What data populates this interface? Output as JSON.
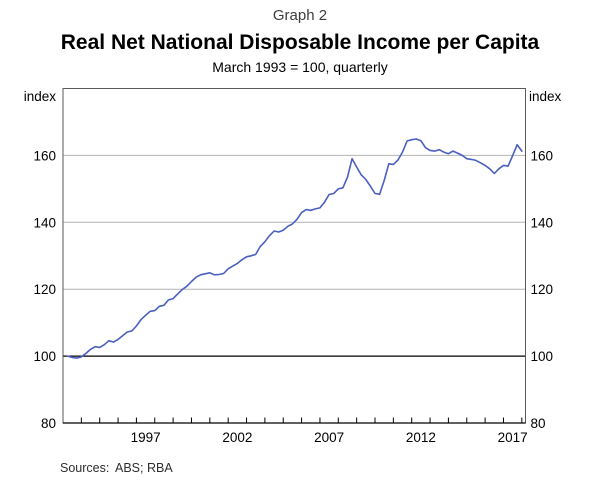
{
  "header": {
    "graph_number": "Graph 2",
    "title": "Real Net National Disposable Income per Capita",
    "subtitle": "March 1993 = 100, quarterly"
  },
  "footer": {
    "sources_label": "Sources:",
    "sources_text": "ABS; RBA"
  },
  "colors": {
    "line": "#4a5fc1",
    "grid": "#b3b3b3",
    "frame": "#595959",
    "axis": "#000000",
    "reference": "#000000"
  },
  "chart_data": {
    "type": "line",
    "title": "Real Net National Disposable Income per Capita",
    "subtitle": "March 1993 = 100, quarterly",
    "grid": true,
    "legend": "none",
    "y_axis": {
      "unit_label": "index",
      "range": [
        80,
        180
      ],
      "tick_values": [
        80,
        100,
        120,
        140,
        160
      ],
      "reference_line": 100,
      "labels_both_sides": true
    },
    "x_axis": {
      "domain_years": [
        1993.0,
        2018.2
      ],
      "tick_year_first": 1994,
      "tick_year_last": 2018,
      "year_labels": [
        1997,
        2002,
        2007,
        2012,
        2017
      ],
      "start_t": 1993.25,
      "step_t": 0.25
    },
    "series": [
      {
        "id": "rnndi-per-capita",
        "name": "Real net national disposable income per capita",
        "color": "#4a5fc1",
        "frequency": "quarterly",
        "first_observation": "Mar 1993",
        "last_observation": "Dec 2017",
        "values": [
          100.0,
          99.6,
          99.4,
          99.8,
          100.8,
          102.0,
          102.8,
          102.6,
          103.4,
          104.6,
          104.2,
          105.0,
          106.1,
          107.2,
          107.5,
          109.0,
          110.9,
          112.2,
          113.4,
          113.6,
          114.9,
          115.2,
          116.8,
          117.2,
          118.6,
          119.9,
          120.9,
          122.3,
          123.6,
          124.3,
          124.6,
          124.9,
          124.3,
          124.4,
          124.7,
          126.1,
          126.9,
          127.7,
          128.8,
          129.7,
          130.0,
          130.4,
          132.8,
          134.2,
          136.0,
          137.4,
          137.1,
          137.6,
          138.8,
          139.5,
          140.9,
          142.9,
          143.8,
          143.6,
          144.0,
          144.3,
          146.0,
          148.3,
          148.6,
          150.0,
          150.3,
          153.5,
          159.0,
          156.5,
          154.2,
          152.8,
          150.8,
          148.6,
          148.4,
          152.5,
          157.5,
          157.3,
          158.6,
          161.0,
          164.3,
          164.7,
          164.9,
          164.4,
          162.3,
          161.5,
          161.3,
          161.7,
          161.0,
          160.5,
          161.3,
          160.7,
          160.0,
          159.0,
          158.8,
          158.5,
          157.8,
          157.0,
          156.0,
          154.6,
          156.0,
          157.0,
          156.8,
          160.0,
          163.2,
          161.3
        ]
      }
    ]
  }
}
